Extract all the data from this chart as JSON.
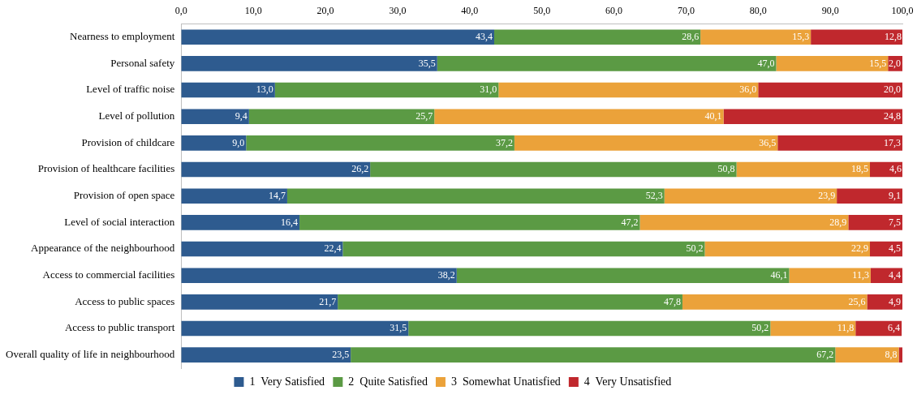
{
  "chart_data": {
    "type": "bar",
    "orientation": "horizontal",
    "stacked": true,
    "legend": "bottom",
    "grid": false,
    "categories": [
      "Nearness to employment",
      "Personal safety",
      "Level of traffic noise",
      "Level of pollution",
      "Provision of childcare",
      "Provision of healthcare facilities",
      "Provision of open space",
      "Level of social interaction",
      "Appearance of the neighbourhood",
      "Access to commercial facilities",
      "Access to public spaces",
      "Access to public transport",
      "Overall quality of life in neighbourhood"
    ],
    "xlim": [
      0,
      100
    ],
    "xticks": [
      {
        "value": 0,
        "label": "0,0"
      },
      {
        "value": 10,
        "label": "10,0"
      },
      {
        "value": 20,
        "label": "20,0"
      },
      {
        "value": 30,
        "label": "30,0"
      },
      {
        "value": 40,
        "label": "40,0"
      },
      {
        "value": 50,
        "label": "50,0"
      },
      {
        "value": 60,
        "label": "60,0"
      },
      {
        "value": 70,
        "label": "70,0"
      },
      {
        "value": 80,
        "label": "80,0"
      },
      {
        "value": 90,
        "label": "90,0"
      },
      {
        "value": 100,
        "label": "100,0"
      }
    ],
    "series": [
      {
        "name": "1  Very Satisfied",
        "color": "#2e5b8f",
        "values": [
          43.4,
          35.5,
          13.0,
          9.4,
          9.0,
          26.2,
          14.7,
          16.4,
          22.4,
          38.2,
          21.7,
          31.5,
          23.5
        ],
        "value_labels": [
          "43,4",
          "35,5",
          "13,0",
          "9,4",
          "9,0",
          "26,2",
          "14,7",
          "16,4",
          "22,4",
          "38,2",
          "21,7",
          "31,5",
          "23,5"
        ]
      },
      {
        "name": "2  Quite Satisfied",
        "color": "#5b9a44",
        "values": [
          28.6,
          47.0,
          31.0,
          25.7,
          37.2,
          50.8,
          52.3,
          47.2,
          50.2,
          46.1,
          47.8,
          50.2,
          67.2
        ],
        "value_labels": [
          "28,6",
          "47,0",
          "31,0",
          "25,7",
          "37,2",
          "50,8",
          "52,3",
          "47,2",
          "50,2",
          "46,1",
          "47,8",
          "50,2",
          "67,2"
        ]
      },
      {
        "name": "3  Somewhat Unatisfied",
        "color": "#eba23a",
        "values": [
          15.3,
          15.5,
          36.0,
          40.1,
          36.5,
          18.5,
          23.9,
          28.9,
          22.9,
          11.3,
          25.6,
          11.8,
          8.8
        ],
        "value_labels": [
          "15,3",
          "15,5",
          "36,0",
          "40,1",
          "36,5",
          "18,5",
          "23,9",
          "28,9",
          "22,9",
          "11,3",
          "25,6",
          "11,8",
          "8,8"
        ]
      },
      {
        "name": "4  Very Unsatisfied",
        "color": "#c0282d",
        "values": [
          12.8,
          2.0,
          20.0,
          24.8,
          17.3,
          4.6,
          9.1,
          7.5,
          4.5,
          4.4,
          4.9,
          6.4,
          0.5
        ],
        "value_labels": [
          "12,8",
          "2,0",
          "20,0",
          "24,8",
          "17,3",
          "4,6",
          "9,1",
          "7,5",
          "4,5",
          "4,4",
          "4,9",
          "6,4",
          null
        ]
      }
    ]
  }
}
